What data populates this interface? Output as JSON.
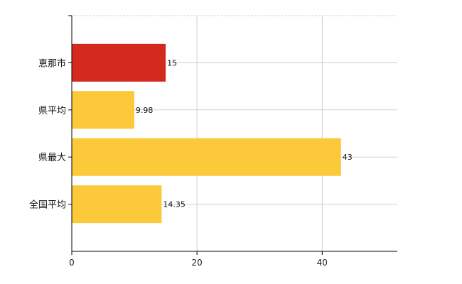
{
  "chart_data": {
    "type": "bar",
    "orientation": "horizontal",
    "categories": [
      "恵那市",
      "県平均",
      "県最大",
      "全国平均"
    ],
    "values": [
      15,
      9.98,
      43,
      14.35
    ],
    "data_labels": [
      "15",
      "9.98",
      "43",
      "14.35"
    ],
    "bar_colors": [
      "#d42a1e",
      "#fcc93a",
      "#fcc93a",
      "#fcc93a"
    ],
    "xlim": [
      0,
      52
    ],
    "x_ticks": [
      0,
      20,
      40
    ],
    "x_tick_labels": [
      "0",
      "20",
      "40"
    ],
    "grid": true,
    "legend": "none",
    "title": "",
    "xlabel": "",
    "ylabel": ""
  }
}
